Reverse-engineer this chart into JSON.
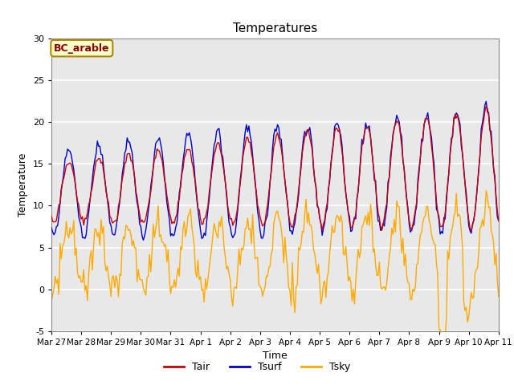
{
  "title": "Temperatures",
  "xlabel": "Time",
  "ylabel": "Temperature",
  "ylim": [
    -5,
    30
  ],
  "bg_color": "#d8d8d8",
  "plot_bg": "#e8e8e8",
  "grid_color": "#ffffff",
  "annotation_text": "BC_arable",
  "annotation_bg": "#ffffcc",
  "annotation_border": "#aa8800",
  "annotation_text_color": "#880000",
  "tair_color": "#cc0000",
  "tsurf_color": "#0000cc",
  "tsky_color": "#ffaa00",
  "xtick_labels": [
    "Mar 27",
    "Mar 28",
    "Mar 29",
    "Mar 30",
    "Mar 31",
    "Apr 1",
    "Apr 2",
    "Apr 3",
    "Apr 4",
    "Apr 5",
    "Apr 6",
    "Apr 7",
    "Apr 8",
    "Apr 9",
    "Apr 10",
    "Apr 11"
  ],
  "xtick_positions": [
    0,
    24,
    48,
    72,
    96,
    120,
    144,
    168,
    192,
    216,
    240,
    264,
    288,
    312,
    336,
    360
  ]
}
